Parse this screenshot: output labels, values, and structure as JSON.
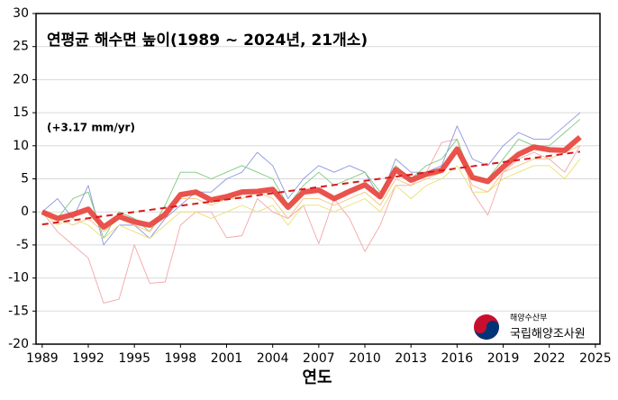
{
  "chart_data": {
    "type": "line",
    "title": "연평균 해수면 높이(1989 ~ 2024년, 21개소)",
    "annotation": "(+3.17 mm/yr)",
    "x_label": "연도",
    "x": [
      1989,
      1990,
      1991,
      1992,
      1993,
      1994,
      1995,
      1996,
      1997,
      1998,
      1999,
      2000,
      2001,
      2002,
      2003,
      2004,
      2005,
      2006,
      2007,
      2008,
      2009,
      2010,
      2011,
      2012,
      2013,
      2014,
      2015,
      2016,
      2017,
      2018,
      2019,
      2020,
      2021,
      2022,
      2023,
      2024
    ],
    "stations": [
      {
        "color": "#f4a6a6",
        "values": [
          0,
          -3,
          -5,
          -7,
          -13.8,
          -13.2,
          -5,
          -10.8,
          -10.6,
          -2,
          0,
          0,
          -3.9,
          -3.6,
          2,
          0,
          -1,
          1,
          -4.8,
          2,
          -1,
          -6,
          -2,
          4,
          4,
          6,
          10.5,
          11,
          3,
          -0.5,
          6,
          8,
          9,
          8,
          6,
          10
        ]
      },
      {
        "color": "#8c96e0",
        "values": [
          0,
          2,
          -1,
          4,
          -5,
          -2,
          -2,
          -4,
          -1,
          1,
          3,
          3,
          5,
          6,
          9,
          7,
          2,
          5,
          7,
          6,
          7,
          6,
          2,
          8,
          6,
          6,
          7,
          13,
          8,
          7,
          10,
          12,
          11,
          11,
          13,
          15
        ]
      },
      {
        "color": "#7ec87e",
        "values": [
          0,
          -1,
          2,
          3,
          -4,
          0,
          -1,
          -3,
          1,
          6,
          6,
          5,
          6,
          7,
          6,
          5,
          1,
          4,
          6,
          4,
          5,
          6,
          3,
          7,
          5,
          7,
          8,
          11,
          5,
          5,
          8,
          11,
          10,
          10,
          12,
          14
        ]
      },
      {
        "color": "#e8e070",
        "values": [
          0,
          -2,
          -1,
          -2,
          -4,
          -2,
          -3,
          -4,
          -2,
          0,
          0,
          -1,
          0,
          1,
          0,
          1,
          -2,
          1,
          1,
          0,
          1,
          2,
          0,
          4,
          2,
          4,
          5,
          7,
          3,
          3,
          5,
          6,
          7,
          7,
          5,
          8
        ]
      },
      {
        "color": "#f5c27a",
        "values": [
          0,
          -1,
          -2,
          -1,
          -3,
          -1,
          -2,
          -3,
          0,
          2,
          2,
          1,
          2,
          2,
          3,
          2,
          -1,
          2,
          2,
          1,
          2,
          3,
          1,
          5,
          4,
          5,
          6,
          9,
          4,
          3,
          6,
          7,
          8,
          8,
          9,
          10
        ]
      }
    ],
    "series": [
      {
        "color": "#e8403a",
        "values": [
          0,
          -1,
          -0.4,
          0.4,
          -2.3,
          -0.7,
          -1.5,
          -2,
          -0.4,
          2.6,
          3,
          1.8,
          2.3,
          3,
          3.1,
          3.4,
          0.7,
          3,
          3.3,
          2,
          3.1,
          4.1,
          2.3,
          6.4,
          4.8,
          5.7,
          6.3,
          9.5,
          5.2,
          4.6,
          6.8,
          8.7,
          9.8,
          9.4,
          9.3,
          11.3
        ]
      }
    ],
    "trend": {
      "color": "#d7191c",
      "x": [
        1989,
        2024
      ],
      "values": [
        -1.9,
        9.1
      ]
    },
    "xlim": [
      1988.6,
      2025.3
    ],
    "ylim": [
      -20,
      30
    ],
    "xticks": [
      1989,
      1992,
      1995,
      1998,
      2001,
      2004,
      2007,
      2010,
      2013,
      2016,
      2019,
      2022,
      2025
    ],
    "yticks": [
      -20,
      -15,
      -10,
      -5,
      0,
      5,
      10,
      15,
      20,
      25,
      30
    ],
    "grid": true,
    "logo": {
      "ministry": "해양수산부",
      "agency": "국립해양조사원"
    }
  }
}
